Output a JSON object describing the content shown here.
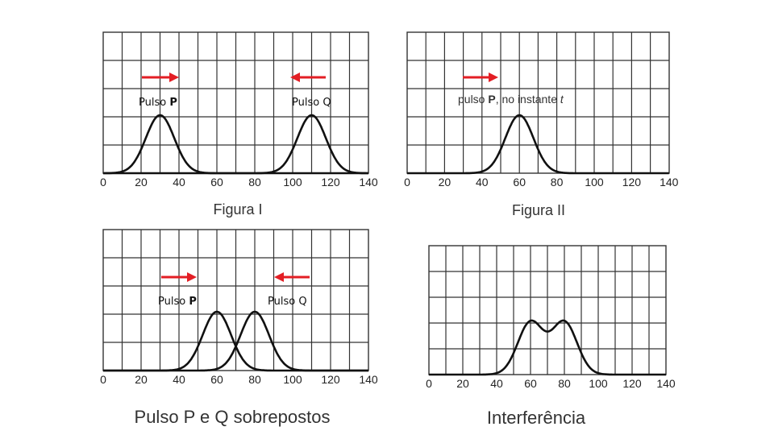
{
  "colors": {
    "arrow": "#e31e24",
    "curve": "#111111",
    "grid": "#333333",
    "text": "#222222"
  },
  "panels": [
    {
      "id": "figura-1",
      "caption": "Figura I",
      "ticks": [
        "0",
        "20",
        "40",
        "60",
        "80",
        "100",
        "120",
        "140"
      ],
      "pulses": [
        {
          "label_prefix": "Pulso ",
          "label_letter": "P",
          "center": 30,
          "direction": "right"
        },
        {
          "label_prefix": "Pulso ",
          "label_letter": "Q",
          "center": 110,
          "direction": "left"
        }
      ],
      "curves": [
        [
          30
        ],
        [
          110
        ]
      ]
    },
    {
      "id": "figura-2",
      "caption": "Figura II",
      "ticks": [
        "0",
        "20",
        "40",
        "60",
        "80",
        "100",
        "120",
        "140"
      ],
      "note_prefix": "pulso ",
      "note_letter": "P",
      "note_suffix": ", no instante ",
      "note_var": "t",
      "pulses": [
        {
          "center": 60,
          "direction": "right"
        }
      ],
      "curves": [
        [
          60
        ]
      ]
    },
    {
      "id": "sobrepostos",
      "caption": "Pulso P e Q sobrepostos",
      "ticks": [
        "0",
        "20",
        "40",
        "60",
        "80",
        "100",
        "120",
        "140"
      ],
      "pulses": [
        {
          "label_prefix": "Pulso ",
          "label_letter": "P",
          "center": 60,
          "direction": "right"
        },
        {
          "label_prefix": "Pulso ",
          "label_letter": "Q",
          "center": 80,
          "direction": "left"
        }
      ],
      "curves": [
        [
          60
        ],
        [
          80
        ]
      ]
    },
    {
      "id": "interferencia",
      "caption": "Interferência",
      "ticks": [
        "0",
        "20",
        "40",
        "60",
        "80",
        "100",
        "120",
        "140"
      ],
      "pulses": [],
      "curves": [
        [
          60,
          80
        ]
      ]
    }
  ]
}
